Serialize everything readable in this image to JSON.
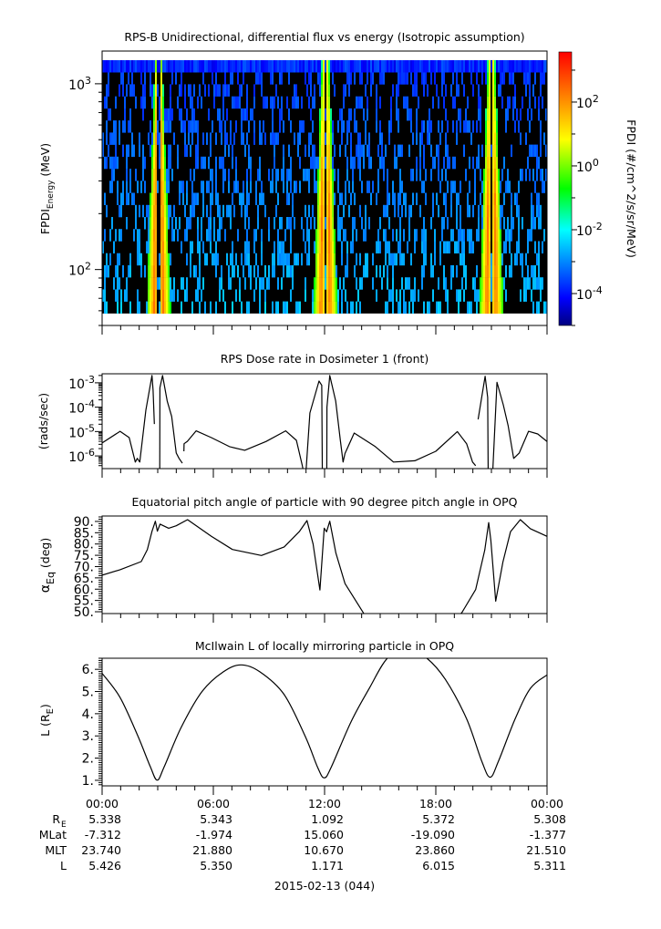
{
  "chart_data": [
    {
      "type": "heatmap",
      "title": "RPS-B  Unidirectional, differential flux vs energy (Isotropic assumption)",
      "ylabel_main": "FPDI",
      "ylabel_sub": "Energy",
      "ylabel_unit": " (MeV)",
      "xlim_hours": [
        0,
        24
      ],
      "ylim_mev": [
        50,
        1500
      ],
      "yscale": "log",
      "data_energy_range_mev": [
        58,
        1340
      ],
      "energy_bins": 21,
      "belt_crossing_centers_hours": [
        3.05,
        12.05,
        21.0
      ],
      "peak_log10_flux": 2.3,
      "background_log10_flux": -3.0,
      "yticks": [
        {
          "base": "10",
          "exp": "2",
          "value": 100
        },
        {
          "base": "10",
          "exp": "3",
          "value": 1000
        }
      ],
      "colorbar": {
        "label": "FPDI (#/cm^2/s/sr/MeV)",
        "log10_range": [
          -5,
          3.57
        ],
        "ticks": [
          {
            "base": "10",
            "exp": "2",
            "value": 2
          },
          {
            "base": "10",
            "exp": "0",
            "value": 0
          },
          {
            "base": "10",
            "exp": "-2",
            "value": -2
          },
          {
            "base": "10",
            "exp": "-4",
            "value": -4
          }
        ],
        "colors": [
          "#000080",
          "#0000ff",
          "#00ffff",
          "#00ff00",
          "#ffff00",
          "#ff0000"
        ]
      }
    },
    {
      "type": "line",
      "title": "RPS  Dose rate in Dosimeter 1 (front)",
      "ylabel": "(rads/sec)",
      "yscale": "log",
      "ylim_log10": [
        -6.52,
        -2.63
      ],
      "yticks": [
        {
          "base": "10",
          "exp": "-3",
          "value": -3
        },
        {
          "base": "10",
          "exp": "-4",
          "value": -4
        },
        {
          "base": "10",
          "exp": "-5",
          "value": -5
        },
        {
          "base": "10",
          "exp": "-6",
          "value": -6
        }
      ],
      "points_hours_log10": [
        [
          0,
          -5.47
        ],
        [
          0.97,
          -4.99
        ],
        [
          1.46,
          -5.25
        ],
        [
          1.79,
          -6.25
        ],
        [
          1.9,
          -6.1
        ],
        [
          2.03,
          -6.25
        ],
        [
          2.36,
          -4.12
        ],
        [
          2.69,
          -2.7
        ],
        [
          2.75,
          -3.3
        ],
        [
          2.82,
          -4.69
        ],
        null,
        [
          3.11,
          -7
        ],
        [
          3.12,
          -3.2
        ],
        [
          3.26,
          -2.7
        ],
        [
          3.51,
          -3.75
        ],
        [
          3.75,
          -4.38
        ],
        [
          4.0,
          -5.88
        ],
        [
          4.15,
          -6.1
        ],
        [
          4.33,
          -6.3
        ],
        null,
        [
          4.41,
          -5.81
        ],
        [
          4.42,
          -5.5
        ],
        [
          4.6,
          -5.4
        ],
        [
          5.07,
          -4.97
        ],
        [
          5.89,
          -5.25
        ],
        [
          6.87,
          -5.62
        ],
        [
          7.69,
          -5.77
        ],
        [
          8.84,
          -5.41
        ],
        [
          9.9,
          -4.97
        ],
        [
          10.48,
          -5.36
        ],
        [
          10.8,
          -6.4
        ],
        [
          10.95,
          -7
        ],
        null,
        [
          11.0,
          -6.6
        ],
        [
          11.21,
          -4.24
        ],
        [
          11.7,
          -2.93
        ],
        [
          11.85,
          -3.1
        ],
        [
          11.88,
          -7
        ],
        null,
        [
          12.12,
          -7
        ],
        [
          12.13,
          -4.0
        ],
        [
          12.28,
          -2.7
        ],
        [
          12.6,
          -3.75
        ],
        [
          12.85,
          -5.36
        ],
        [
          13.0,
          -6.25
        ],
        [
          13.1,
          -5.9
        ],
        [
          13.6,
          -5.06
        ],
        [
          14.74,
          -5.62
        ],
        [
          15.72,
          -6.25
        ],
        [
          16.87,
          -6.2
        ],
        [
          18.0,
          -5.81
        ],
        [
          19.16,
          -5.0
        ],
        [
          19.66,
          -5.5
        ],
        [
          19.98,
          -6.25
        ],
        [
          20.15,
          -6.4
        ],
        null,
        [
          20.28,
          -4.5
        ],
        [
          20.66,
          -2.73
        ],
        [
          20.8,
          -3.6
        ],
        [
          20.83,
          -7
        ],
        null,
        [
          21.05,
          -7
        ],
        [
          21.3,
          -2.98
        ],
        [
          21.64,
          -3.9
        ],
        [
          21.9,
          -4.75
        ],
        [
          22.2,
          -6.1
        ],
        [
          22.5,
          -5.88
        ],
        [
          23.0,
          -4.99
        ],
        [
          23.5,
          -5.1
        ],
        [
          24,
          -5.41
        ]
      ]
    },
    {
      "type": "line",
      "title": "Equatorial pitch angle of particle with 90 degree pitch angle in OPQ",
      "ylabel_main": "α",
      "ylabel_sub": "Eq",
      "ylabel_unit": " (deg)",
      "ylim": [
        49.2,
        92.4
      ],
      "yticks": [
        "90.",
        "85.",
        "80.",
        "75.",
        "70.",
        "65.",
        "60.",
        "55.",
        "50."
      ],
      "ytick_values": [
        90,
        85,
        80,
        75,
        70,
        65,
        60,
        55,
        50
      ],
      "points_hours_deg": [
        [
          0,
          66.2
        ],
        [
          0.97,
          68.6
        ],
        [
          2.11,
          72.2
        ],
        [
          2.44,
          77.5
        ],
        [
          2.69,
          85.6
        ],
        [
          2.87,
          90.1
        ],
        [
          2.98,
          85.7
        ],
        [
          3.13,
          88.8
        ],
        [
          3.59,
          87
        ],
        [
          4.0,
          88.1
        ],
        [
          4.61,
          90.8
        ],
        [
          5.89,
          83.4
        ],
        [
          7.03,
          77.6
        ],
        [
          8.59,
          74.9
        ],
        [
          9.82,
          78.7
        ],
        [
          10.64,
          85.5
        ],
        [
          11.05,
          90.4
        ],
        [
          11.38,
          80
        ],
        [
          11.75,
          59.6
        ],
        [
          11.98,
          87
        ],
        [
          12.11,
          85.4
        ],
        [
          12.28,
          90.1
        ],
        [
          12.61,
          76
        ],
        [
          13.1,
          62.5
        ],
        [
          14.08,
          49.7
        ],
        [
          14.4,
          45
        ],
        null,
        [
          18.9,
          45
        ],
        [
          19.41,
          49.7
        ],
        [
          20.15,
          59.8
        ],
        [
          20.64,
          77.3
        ],
        [
          20.85,
          89.5
        ],
        [
          20.97,
          81.5
        ],
        [
          21.23,
          54.7
        ],
        [
          21.62,
          72
        ],
        [
          22.03,
          85.4
        ],
        [
          22.56,
          90.8
        ],
        [
          23.1,
          86.8
        ],
        [
          24,
          83.4
        ]
      ]
    },
    {
      "type": "line",
      "title": "McIlwain L of locally mirroring particle in OPQ",
      "ylabel_main": "L (R",
      "ylabel_sub": "E",
      "ylabel_unit": ")",
      "ylim": [
        0.75,
        6.5
      ],
      "yticks": [
        "6.",
        "5.",
        "4.",
        "3.",
        "2.",
        "1."
      ],
      "ytick_values": [
        6,
        5,
        4,
        3,
        2,
        1
      ],
      "points_hours_L": [
        [
          0,
          5.82
        ],
        [
          0.97,
          4.73
        ],
        [
          1.95,
          2.95
        ],
        [
          2.61,
          1.59
        ],
        [
          2.97,
          1.01
        ],
        [
          3.34,
          1.59
        ],
        [
          4.25,
          3.36
        ],
        [
          5.39,
          5.0
        ],
        [
          6.54,
          5.89
        ],
        [
          7.49,
          6.2
        ],
        [
          8.51,
          5.89
        ],
        [
          9.82,
          4.86
        ],
        [
          10.97,
          2.95
        ],
        [
          11.62,
          1.59
        ],
        [
          11.98,
          1.11
        ],
        [
          12.36,
          1.59
        ],
        [
          13.43,
          3.64
        ],
        [
          14.41,
          5.14
        ],
        [
          15.39,
          6.5
        ],
        [
          16.46,
          6.95
        ],
        [
          17.52,
          6.5
        ],
        [
          18.51,
          5.55
        ],
        [
          19.66,
          3.77
        ],
        [
          20.48,
          1.86
        ],
        [
          20.93,
          1.14
        ],
        [
          21.38,
          1.86
        ],
        [
          22.28,
          3.77
        ],
        [
          23.1,
          5.14
        ],
        [
          24,
          5.75
        ]
      ]
    }
  ],
  "ephemeris": {
    "times": [
      "00:00",
      "06:00",
      "12:00",
      "18:00",
      "00:00"
    ],
    "rows": [
      {
        "label": "R",
        "sub": "E",
        "values": [
          "5.338",
          "5.343",
          "1.092",
          "5.372",
          "5.308"
        ]
      },
      {
        "label": "MLat",
        "sub": "",
        "values": [
          "-7.312",
          "-1.974",
          "15.060",
          "-19.090",
          "-1.377"
        ]
      },
      {
        "label": "MLT",
        "sub": "",
        "values": [
          "23.740",
          "21.880",
          "10.670",
          "23.860",
          "21.510"
        ]
      },
      {
        "label": "L",
        "sub": "",
        "values": [
          "5.426",
          "5.350",
          "1.171",
          "6.015",
          "5.311"
        ]
      }
    ],
    "date": "2015-02-13 (044)"
  }
}
